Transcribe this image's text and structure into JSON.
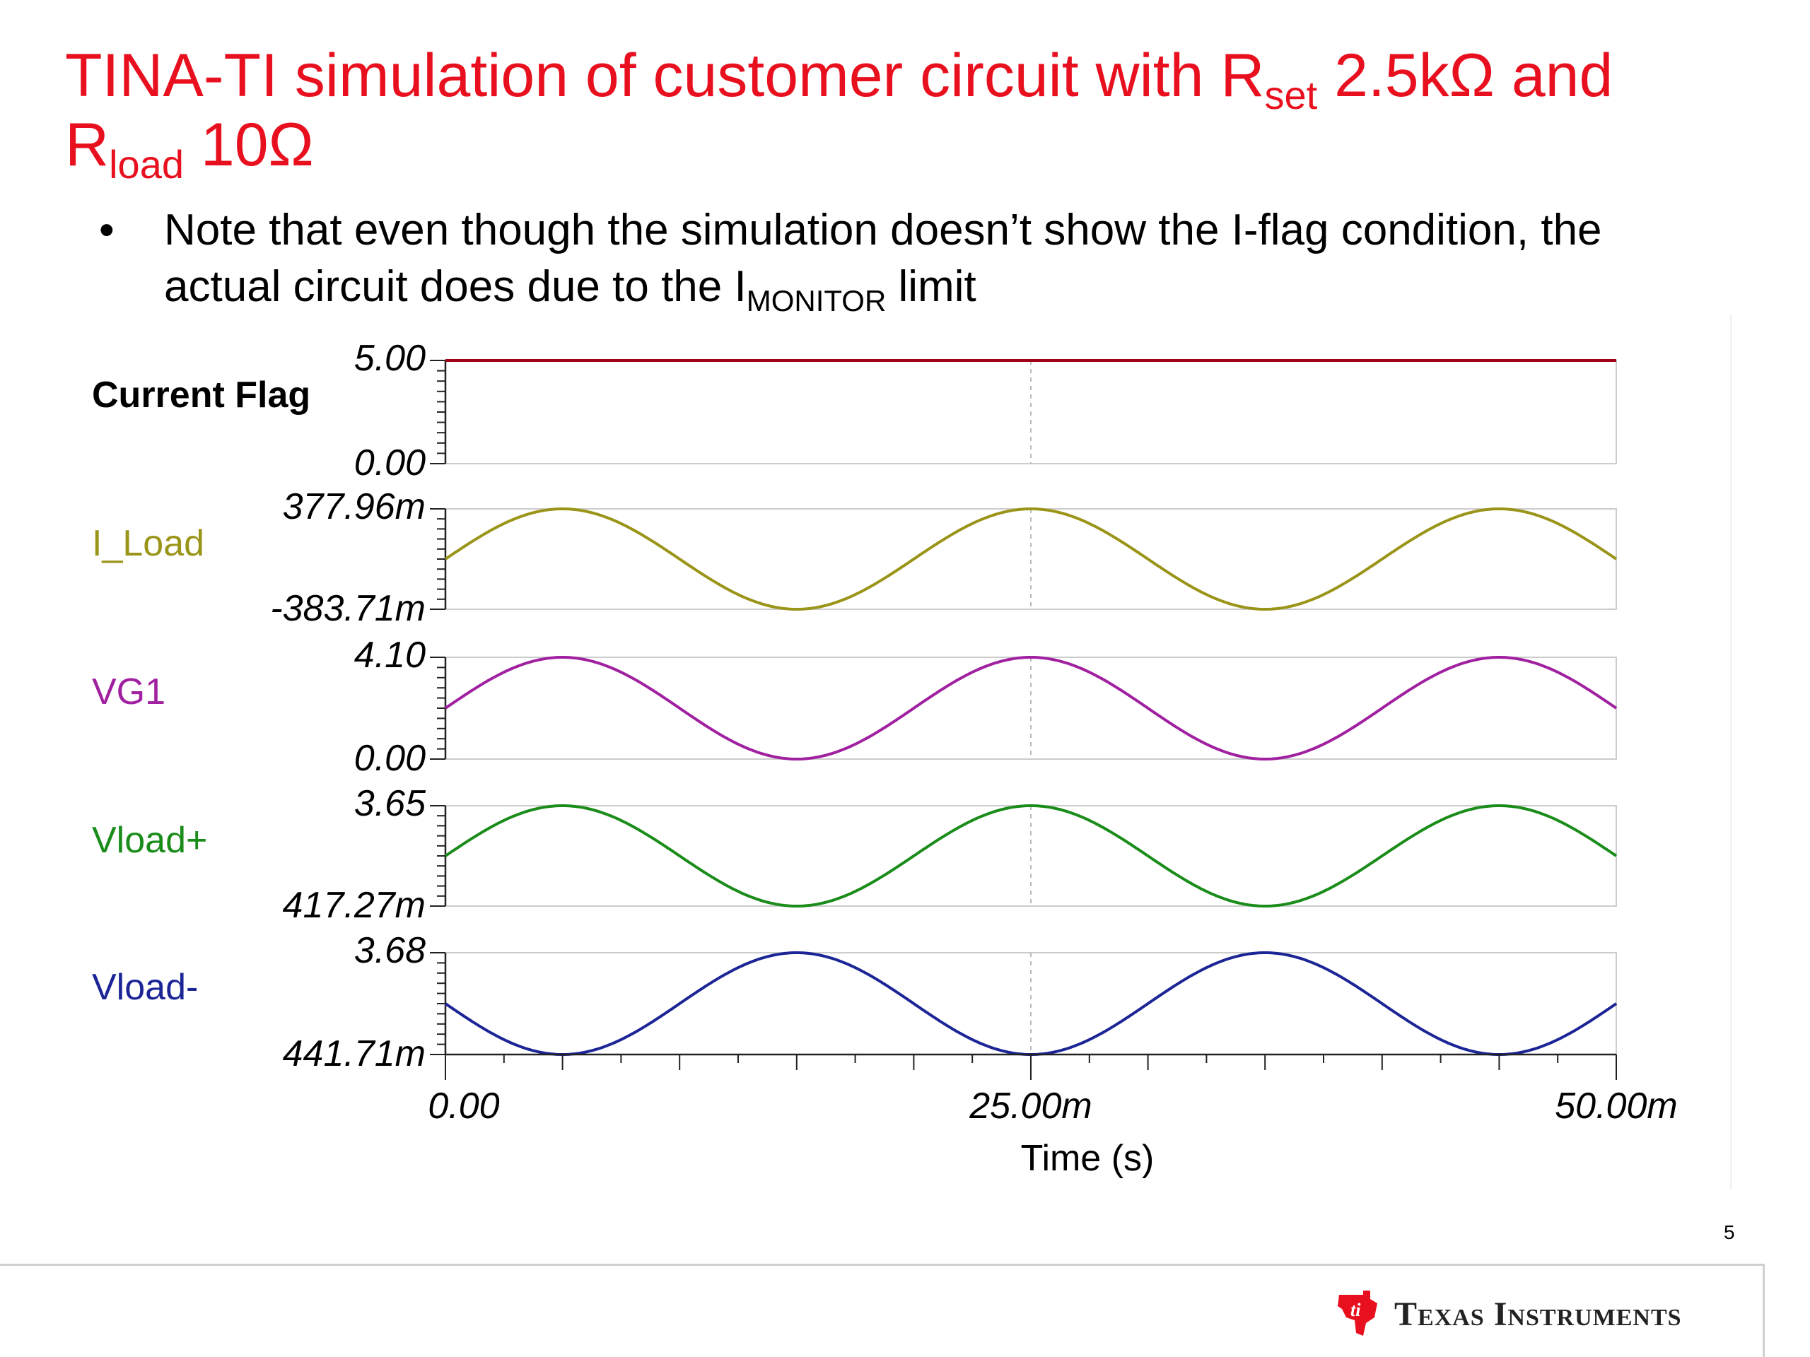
{
  "slide": {
    "title_part1": "TINA-TI simulation of customer circuit with R",
    "title_sub1": "set",
    "title_part2": " 2.5kΩ and ",
    "title_part3": "R",
    "title_sub2": "load",
    "title_part4": " 10Ω",
    "bullet_symbol": "•",
    "bullet_text1": "Note that even though the simulation doesn’t show the I-flag condition, the actual circuit does due to the I",
    "bullet_sub": "MONITOR",
    "bullet_text2": " limit",
    "page_number": "5",
    "logo_text": "Texas Instruments",
    "logo_icon": "ti-logo-icon"
  },
  "chart_data": {
    "type": "line",
    "xlabel": "Time (s)",
    "xlim": [
      0,
      0.05
    ],
    "x_ticks": [
      "0.00",
      "25.00m",
      "50.00m"
    ],
    "period": 0.02,
    "grid": true,
    "series": [
      {
        "name": "Current Flag",
        "color": "#a0001a",
        "label_color": "#000000",
        "y_max_label": "5.00",
        "y_min_label": "0.00",
        "ylim": [
          0,
          5
        ],
        "waveform": "constant",
        "value": 5.0
      },
      {
        "name": "I_Load",
        "color": "#9a9418",
        "label_color": "#9a9418",
        "y_max_label": "377.96m",
        "y_min_label": "-383.71m",
        "ylim": [
          -0.38371,
          0.37796
        ],
        "waveform": "sine",
        "min": -0.38371,
        "max": 0.37796,
        "phase_deg": 0
      },
      {
        "name": "VG1",
        "color": "#a020a0",
        "label_color": "#a020a0",
        "y_max_label": "4.10",
        "y_min_label": "0.00",
        "ylim": [
          0,
          4.1
        ],
        "waveform": "sine",
        "min": 0.0,
        "max": 4.1,
        "phase_deg": 0
      },
      {
        "name": "Vload+",
        "color": "#1a8c1a",
        "label_color": "#1a8c1a",
        "y_max_label": "3.65",
        "y_min_label": "417.27m",
        "ylim": [
          0.41727,
          3.65
        ],
        "waveform": "sine",
        "min": 0.41727,
        "max": 3.65,
        "phase_deg": 0
      },
      {
        "name": "Vload-",
        "color": "#1c2596",
        "label_color": "#1c2596",
        "y_max_label": "3.68",
        "y_min_label": "441.71m",
        "ylim": [
          0.44171,
          3.68
        ],
        "waveform": "sine",
        "min": 0.44171,
        "max": 3.68,
        "phase_deg": 180
      }
    ]
  }
}
